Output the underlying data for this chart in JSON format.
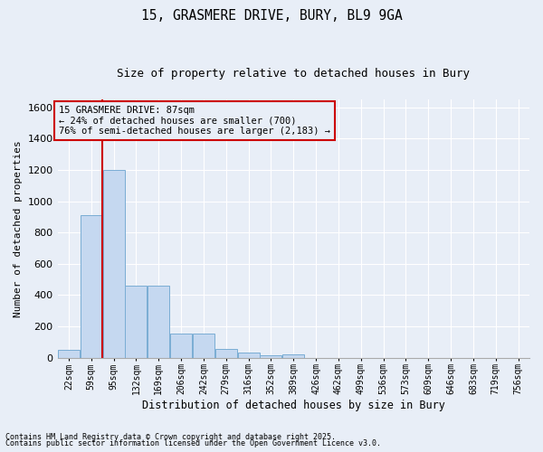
{
  "title_line1": "15, GRASMERE DRIVE, BURY, BL9 9GA",
  "title_line2": "Size of property relative to detached houses in Bury",
  "xlabel": "Distribution of detached houses by size in Bury",
  "ylabel": "Number of detached properties",
  "categories": [
    "22sqm",
    "59sqm",
    "95sqm",
    "132sqm",
    "169sqm",
    "206sqm",
    "242sqm",
    "279sqm",
    "316sqm",
    "352sqm",
    "389sqm",
    "426sqm",
    "462sqm",
    "499sqm",
    "536sqm",
    "573sqm",
    "609sqm",
    "646sqm",
    "683sqm",
    "719sqm",
    "756sqm"
  ],
  "values": [
    50,
    910,
    1200,
    460,
    460,
    155,
    155,
    55,
    30,
    15,
    20,
    0,
    0,
    0,
    0,
    0,
    0,
    0,
    0,
    0,
    0
  ],
  "bar_color": "#c5d8f0",
  "bar_edgecolor": "#7aadd4",
  "background_color": "#e8eef7",
  "grid_color": "#ffffff",
  "vline_x_index": 1.5,
  "vline_color": "#cc0000",
  "ylim": [
    0,
    1650
  ],
  "yticks": [
    0,
    200,
    400,
    600,
    800,
    1000,
    1200,
    1400,
    1600
  ],
  "annotation_text": "15 GRASMERE DRIVE: 87sqm\n← 24% of detached houses are smaller (700)\n76% of semi-detached houses are larger (2,183) →",
  "annotation_box_color": "#cc0000",
  "footer_line1": "Contains HM Land Registry data © Crown copyright and database right 2025.",
  "footer_line2": "Contains public sector information licensed under the Open Government Licence v3.0."
}
